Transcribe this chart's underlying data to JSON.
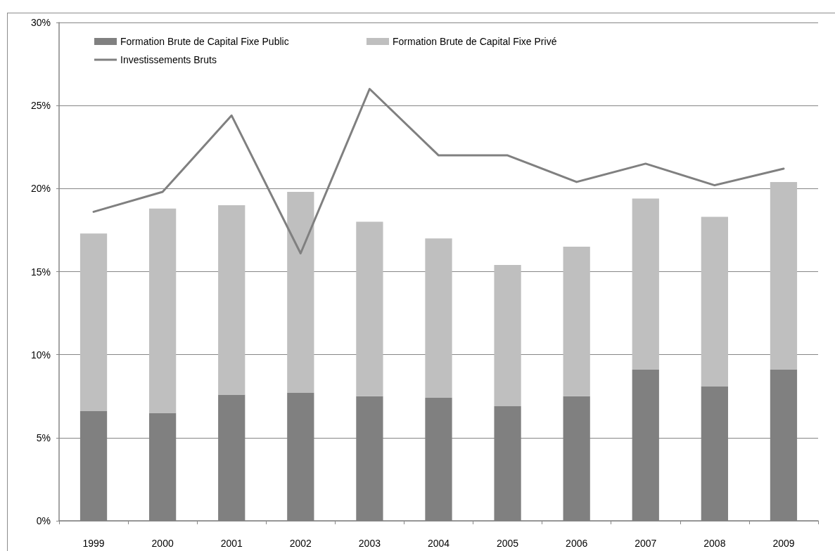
{
  "chart_data": {
    "type": "bar",
    "stacked": true,
    "categories": [
      "1999",
      "2000",
      "2001",
      "2002",
      "2003",
      "2004",
      "2005",
      "2006",
      "2007",
      "2008",
      "2009"
    ],
    "series": [
      {
        "name": "Formation Brute de Capital Fixe Public",
        "color": "#808080",
        "values": [
          6.6,
          6.5,
          7.6,
          7.7,
          7.5,
          7.4,
          6.9,
          7.5,
          9.1,
          8.1,
          9.1
        ]
      },
      {
        "name": "Formation Brute de Capital Fixe Privé",
        "color": "#bfbfbf",
        "values": [
          10.7,
          12.3,
          11.4,
          12.1,
          10.5,
          9.6,
          8.5,
          9.0,
          10.3,
          10.2,
          11.3
        ]
      },
      {
        "name": "Investissements Bruts",
        "type": "line",
        "color": "#808080",
        "values": [
          18.6,
          19.8,
          24.4,
          16.1,
          26.0,
          22.0,
          22.0,
          20.4,
          21.5,
          20.2,
          21.2
        ]
      }
    ],
    "ylim": [
      0,
      30
    ],
    "yticks": [
      {
        "value": 0,
        "label": "0%"
      },
      {
        "value": 5,
        "label": "5%"
      },
      {
        "value": 10,
        "label": "10%"
      },
      {
        "value": 15,
        "label": "15%"
      },
      {
        "value": 20,
        "label": "20%"
      },
      {
        "value": 25,
        "label": "25%"
      },
      {
        "value": 30,
        "label": "30%"
      }
    ],
    "grid": "y",
    "legend": "top left",
    "marker": "none",
    "line_style": "solid"
  }
}
